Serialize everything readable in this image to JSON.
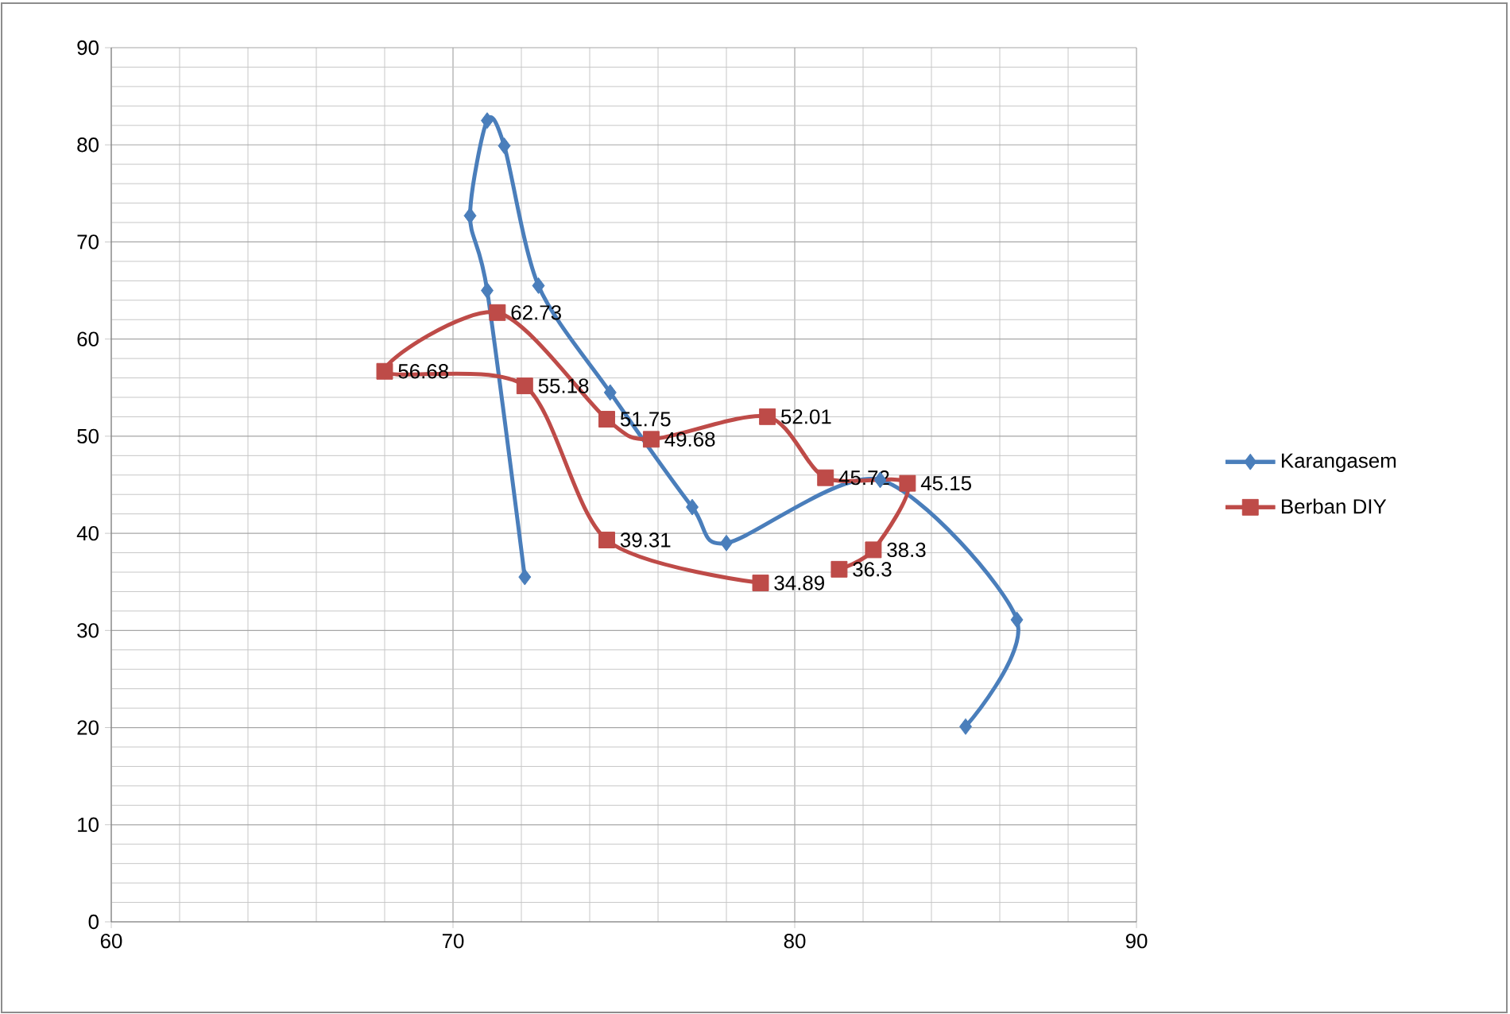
{
  "chart_data": {
    "type": "line",
    "xlim": [
      60,
      90
    ],
    "ylim": [
      0,
      90
    ],
    "xticks": [
      60,
      70,
      80,
      90
    ],
    "yticks": [
      0,
      10,
      20,
      30,
      40,
      50,
      60,
      70,
      80,
      90
    ],
    "grid": true,
    "legend": "right",
    "line_style": "solid",
    "series": [
      {
        "name": "Karangasem",
        "color": "#4a7ebb",
        "marker": "diamond",
        "x": [
          72.1,
          71.0,
          70.5,
          71.0,
          71.5,
          72.5,
          74.6,
          77.0,
          78.0,
          82.5,
          86.5,
          85.0
        ],
        "values": [
          35.5,
          65.0,
          72.7,
          82.5,
          79.9,
          65.5,
          54.5,
          42.7,
          39.0,
          45.5,
          31.1,
          20.1
        ]
      },
      {
        "name": "Berban DIY",
        "color": "#be4b48",
        "marker": "square",
        "data_labels": true,
        "x": [
          79.0,
          74.5,
          72.1,
          68.0,
          71.3,
          74.5,
          75.8,
          79.2,
          80.9,
          83.3,
          82.3,
          81.3
        ],
        "values": [
          34.89,
          39.31,
          55.18,
          56.68,
          62.73,
          51.75,
          49.68,
          52.01,
          45.72,
          45.15,
          38.3,
          36.3
        ]
      }
    ]
  }
}
